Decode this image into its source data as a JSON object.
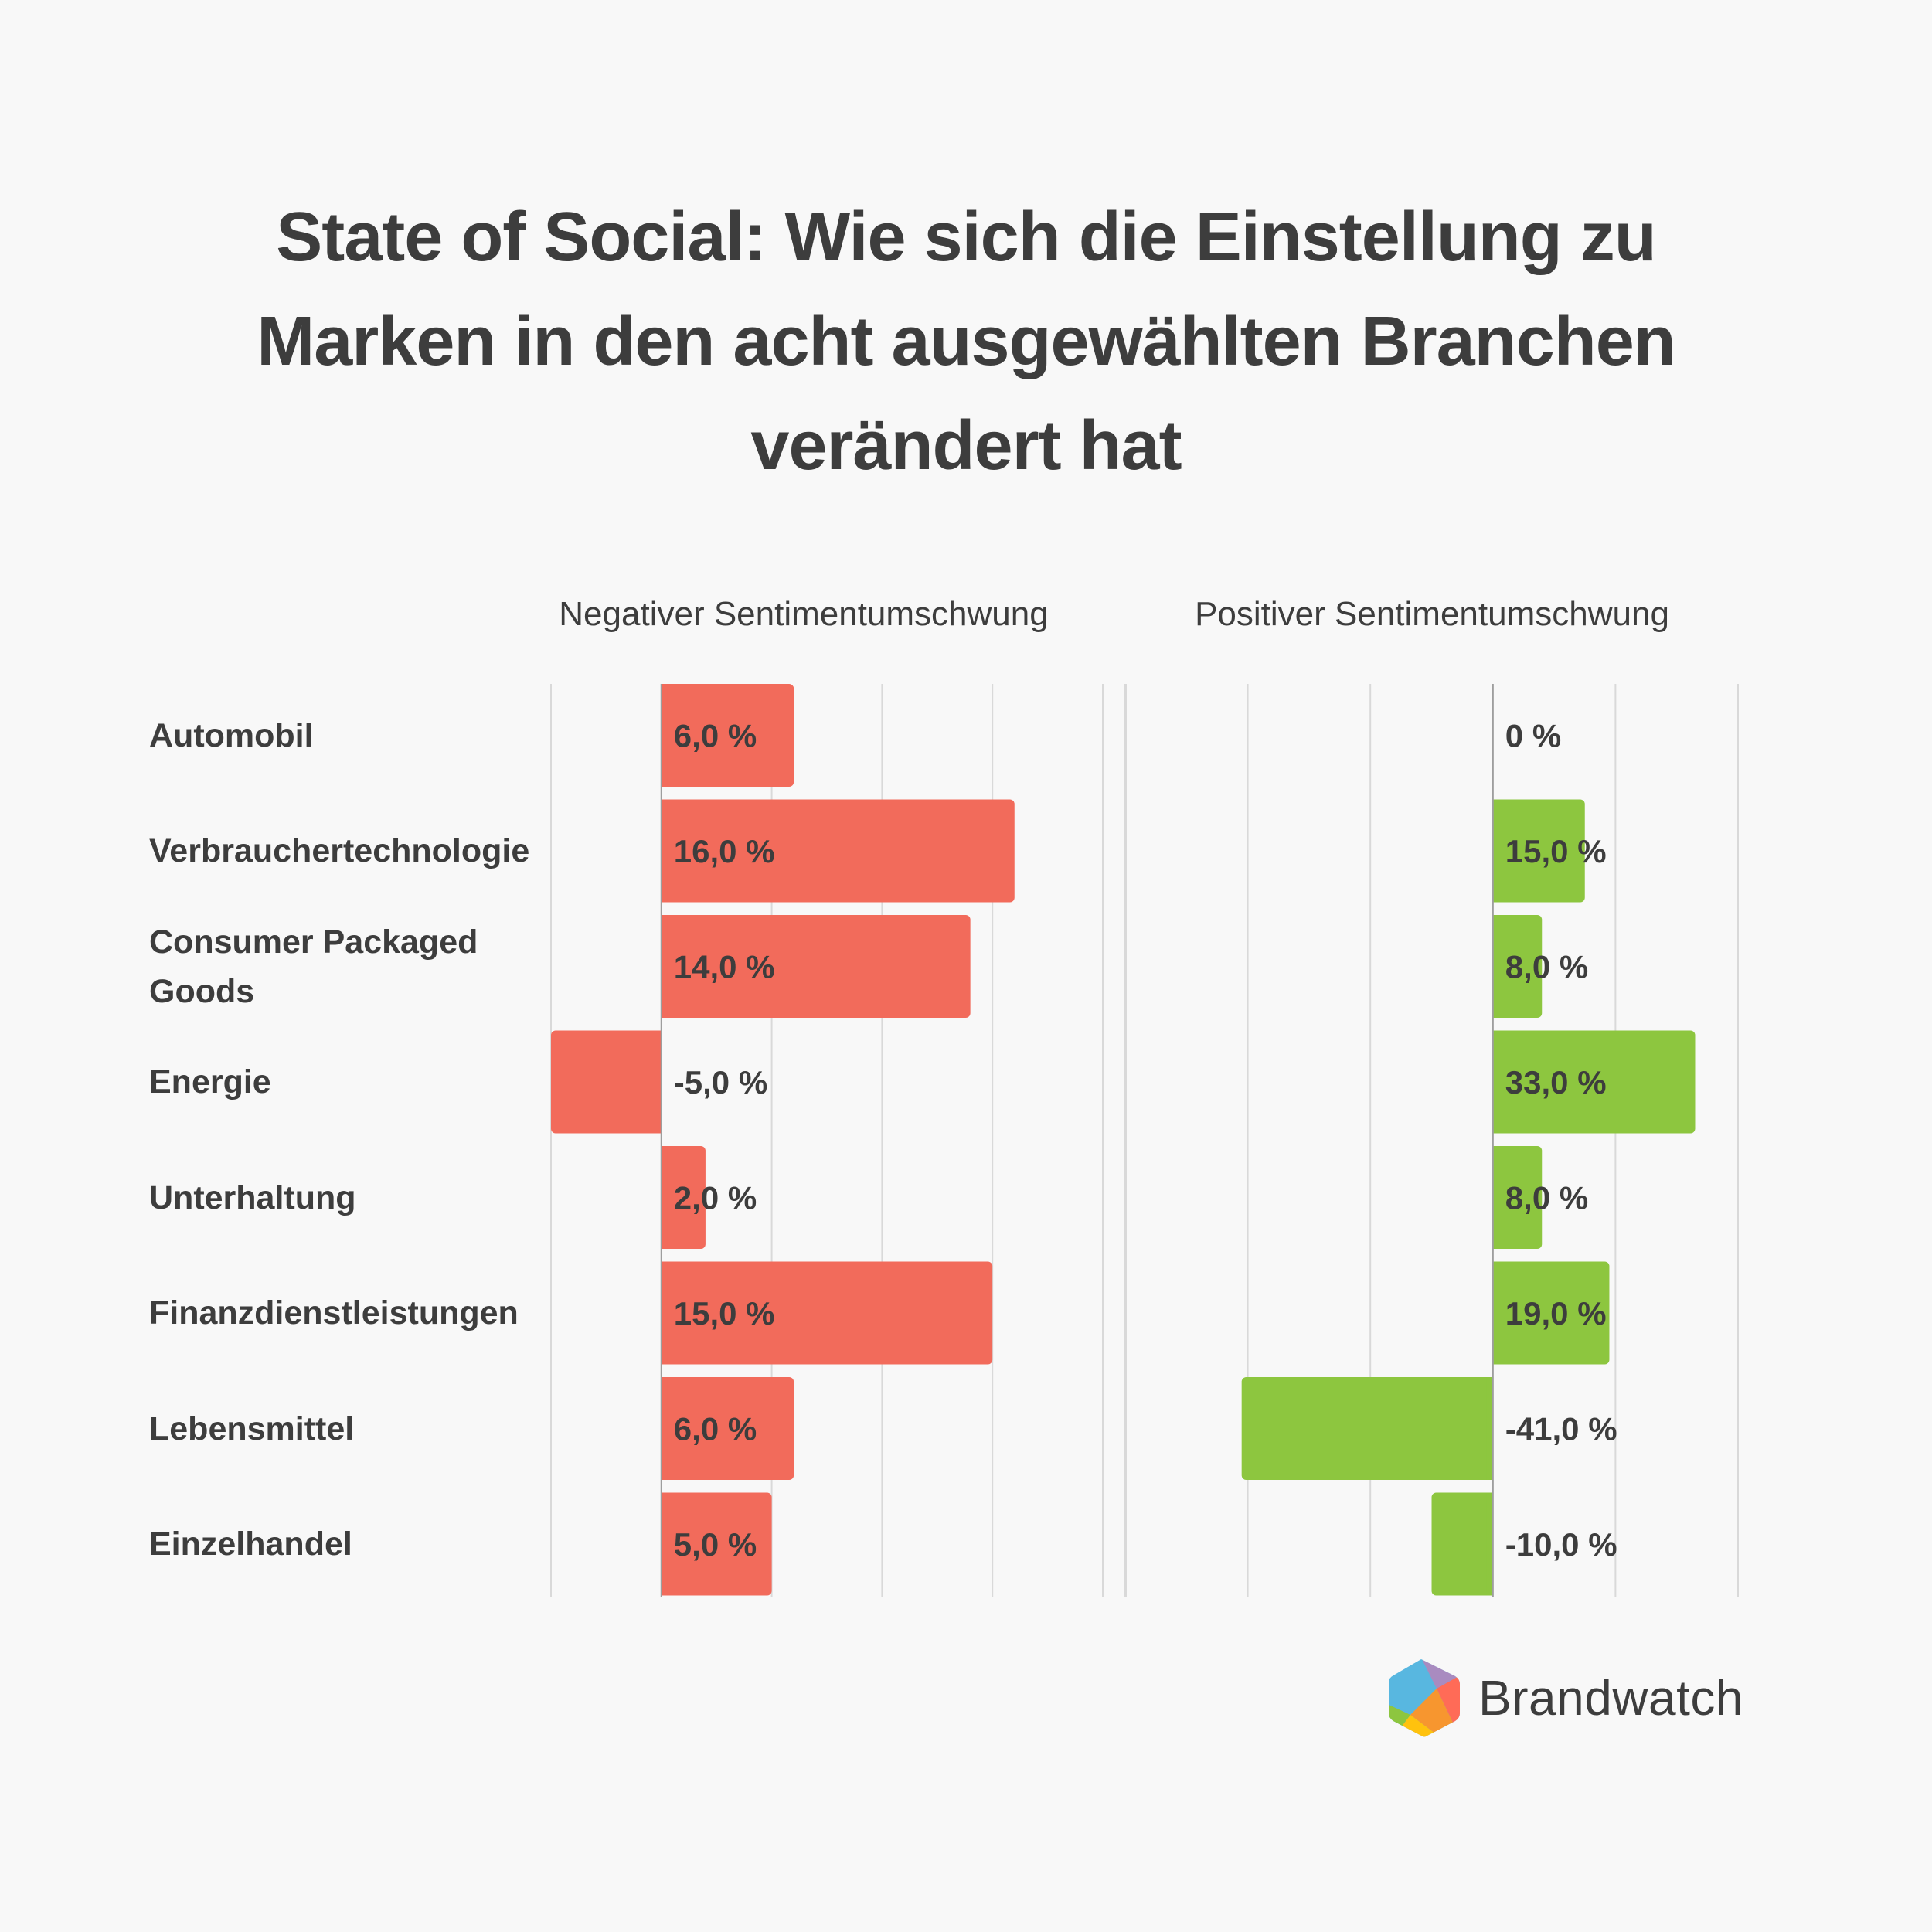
{
  "title_lines": [
    "State of Social: Wie sich die Einstellung zu",
    "Marken in den acht ausgewählten Branchen",
    "verändert hat"
  ],
  "brand": {
    "name": "Brandwatch",
    "logo_icon": "brandwatch-hexagon-logo"
  },
  "chart_data": [
    {
      "type": "bar",
      "orientation": "horizontal",
      "title": "Negativer Sentimentumschwung",
      "categories": [
        "Automobil",
        "Verbrauchertechnologie",
        "Consumer Packaged Goods",
        "Energie",
        "Unterhaltung",
        "Finanzdienstleistungen",
        "Lebensmittel",
        "Einzelhandel"
      ],
      "values": [
        6.0,
        16.0,
        14.0,
        -5.0,
        2.0,
        15.0,
        6.0,
        5.0
      ],
      "data_labels": [
        "6,0 %",
        "16,0 %",
        "14,0 %",
        "-5,0 %",
        "2,0 %",
        "15,0 %",
        "6,0 %",
        "5,0 %"
      ],
      "xlim": [
        -5,
        20
      ],
      "grid_ticks": [
        -5,
        0,
        5,
        10,
        15,
        20
      ],
      "grid": true,
      "color": "#f26b5b"
    },
    {
      "type": "bar",
      "orientation": "horizontal",
      "title": "Positiver Sentimentumschwung",
      "categories": [
        "Automobil",
        "Verbrauchertechnologie",
        "Consumer Packaged Goods",
        "Energie",
        "Unterhaltung",
        "Finanzdienstleistungen",
        "Lebensmittel",
        "Einzelhandel"
      ],
      "values": [
        0,
        15.0,
        8.0,
        33.0,
        8.0,
        19.0,
        -41.0,
        -10.0
      ],
      "data_labels": [
        "0 %",
        "15,0 %",
        "8,0 %",
        "33,0 %",
        "8,0 %",
        "19,0 %",
        "-41,0 %",
        "-10,0 %"
      ],
      "xlim": [
        -60,
        40
      ],
      "grid_ticks": [
        -60,
        -40,
        -20,
        0,
        20,
        40
      ],
      "grid": true,
      "color": "#8dc63f"
    }
  ],
  "category_labels": [
    [
      "Automobil"
    ],
    [
      "Verbrauchertechnologie"
    ],
    [
      "Consumer Packaged",
      "Goods"
    ],
    [
      "Energie"
    ],
    [
      "Unterhaltung"
    ],
    [
      "Finanzdienstleistungen"
    ],
    [
      "Lebensmittel"
    ],
    [
      "Einzelhandel"
    ]
  ]
}
